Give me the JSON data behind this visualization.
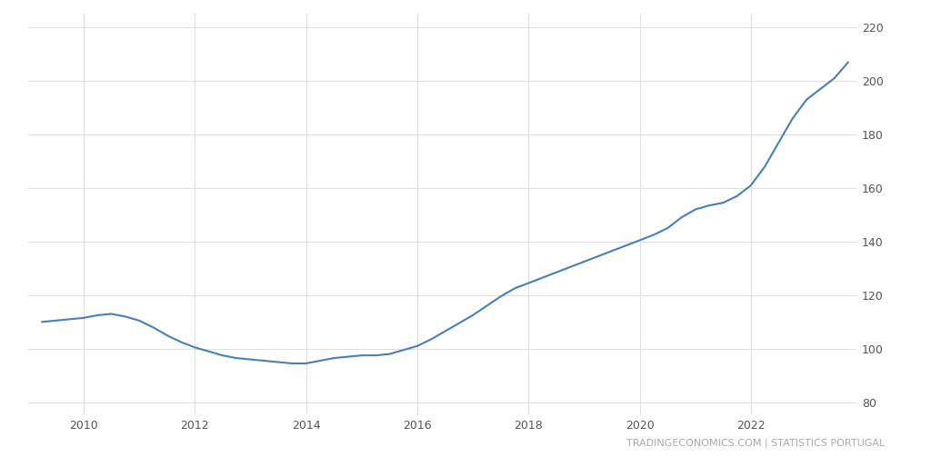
{
  "title": "",
  "watermark": "TRADINGECONOMICS.COM | STATISTICS PORTUGAL",
  "line_color": "#4a7fb5",
  "background_color": "#ffffff",
  "grid_color": "#e0e0e0",
  "ylim": [
    75,
    225
  ],
  "yticks": [
    80,
    100,
    120,
    140,
    160,
    180,
    200,
    220
  ],
  "x_labels": [
    "2010",
    "2012",
    "2014",
    "2016",
    "2018",
    "2020",
    "2022"
  ],
  "x_tick_positions": [
    2010,
    2012,
    2014,
    2016,
    2018,
    2020,
    2022
  ],
  "xlim": [
    2009.0,
    2023.9
  ],
  "data": [
    [
      2009.25,
      110.0
    ],
    [
      2009.5,
      110.5
    ],
    [
      2009.75,
      111.0
    ],
    [
      2010.0,
      111.5
    ],
    [
      2010.25,
      112.5
    ],
    [
      2010.5,
      113.0
    ],
    [
      2010.75,
      112.0
    ],
    [
      2011.0,
      110.5
    ],
    [
      2011.25,
      108.0
    ],
    [
      2011.5,
      105.0
    ],
    [
      2011.75,
      102.5
    ],
    [
      2012.0,
      100.5
    ],
    [
      2012.25,
      99.0
    ],
    [
      2012.5,
      97.5
    ],
    [
      2012.75,
      96.5
    ],
    [
      2013.0,
      96.0
    ],
    [
      2013.25,
      95.5
    ],
    [
      2013.5,
      95.0
    ],
    [
      2013.75,
      94.5
    ],
    [
      2014.0,
      94.5
    ],
    [
      2014.25,
      95.5
    ],
    [
      2014.5,
      96.5
    ],
    [
      2014.75,
      97.0
    ],
    [
      2015.0,
      97.5
    ],
    [
      2015.25,
      97.5
    ],
    [
      2015.5,
      98.0
    ],
    [
      2015.75,
      99.5
    ],
    [
      2016.0,
      101.0
    ],
    [
      2016.25,
      103.5
    ],
    [
      2016.5,
      106.5
    ],
    [
      2016.75,
      109.5
    ],
    [
      2017.0,
      112.5
    ],
    [
      2017.25,
      116.0
    ],
    [
      2017.5,
      119.5
    ],
    [
      2017.75,
      122.5
    ],
    [
      2018.0,
      124.5
    ],
    [
      2018.25,
      126.5
    ],
    [
      2018.5,
      128.5
    ],
    [
      2018.75,
      130.5
    ],
    [
      2019.0,
      132.5
    ],
    [
      2019.25,
      134.5
    ],
    [
      2019.5,
      136.5
    ],
    [
      2019.75,
      138.5
    ],
    [
      2020.0,
      140.5
    ],
    [
      2020.25,
      142.5
    ],
    [
      2020.5,
      145.0
    ],
    [
      2020.75,
      149.0
    ],
    [
      2021.0,
      152.0
    ],
    [
      2021.25,
      153.5
    ],
    [
      2021.5,
      154.5
    ],
    [
      2021.75,
      157.0
    ],
    [
      2022.0,
      161.0
    ],
    [
      2022.25,
      168.0
    ],
    [
      2022.5,
      177.0
    ],
    [
      2022.75,
      186.0
    ],
    [
      2023.0,
      193.0
    ],
    [
      2023.25,
      197.0
    ],
    [
      2023.5,
      201.0
    ],
    [
      2023.75,
      207.0
    ]
  ]
}
